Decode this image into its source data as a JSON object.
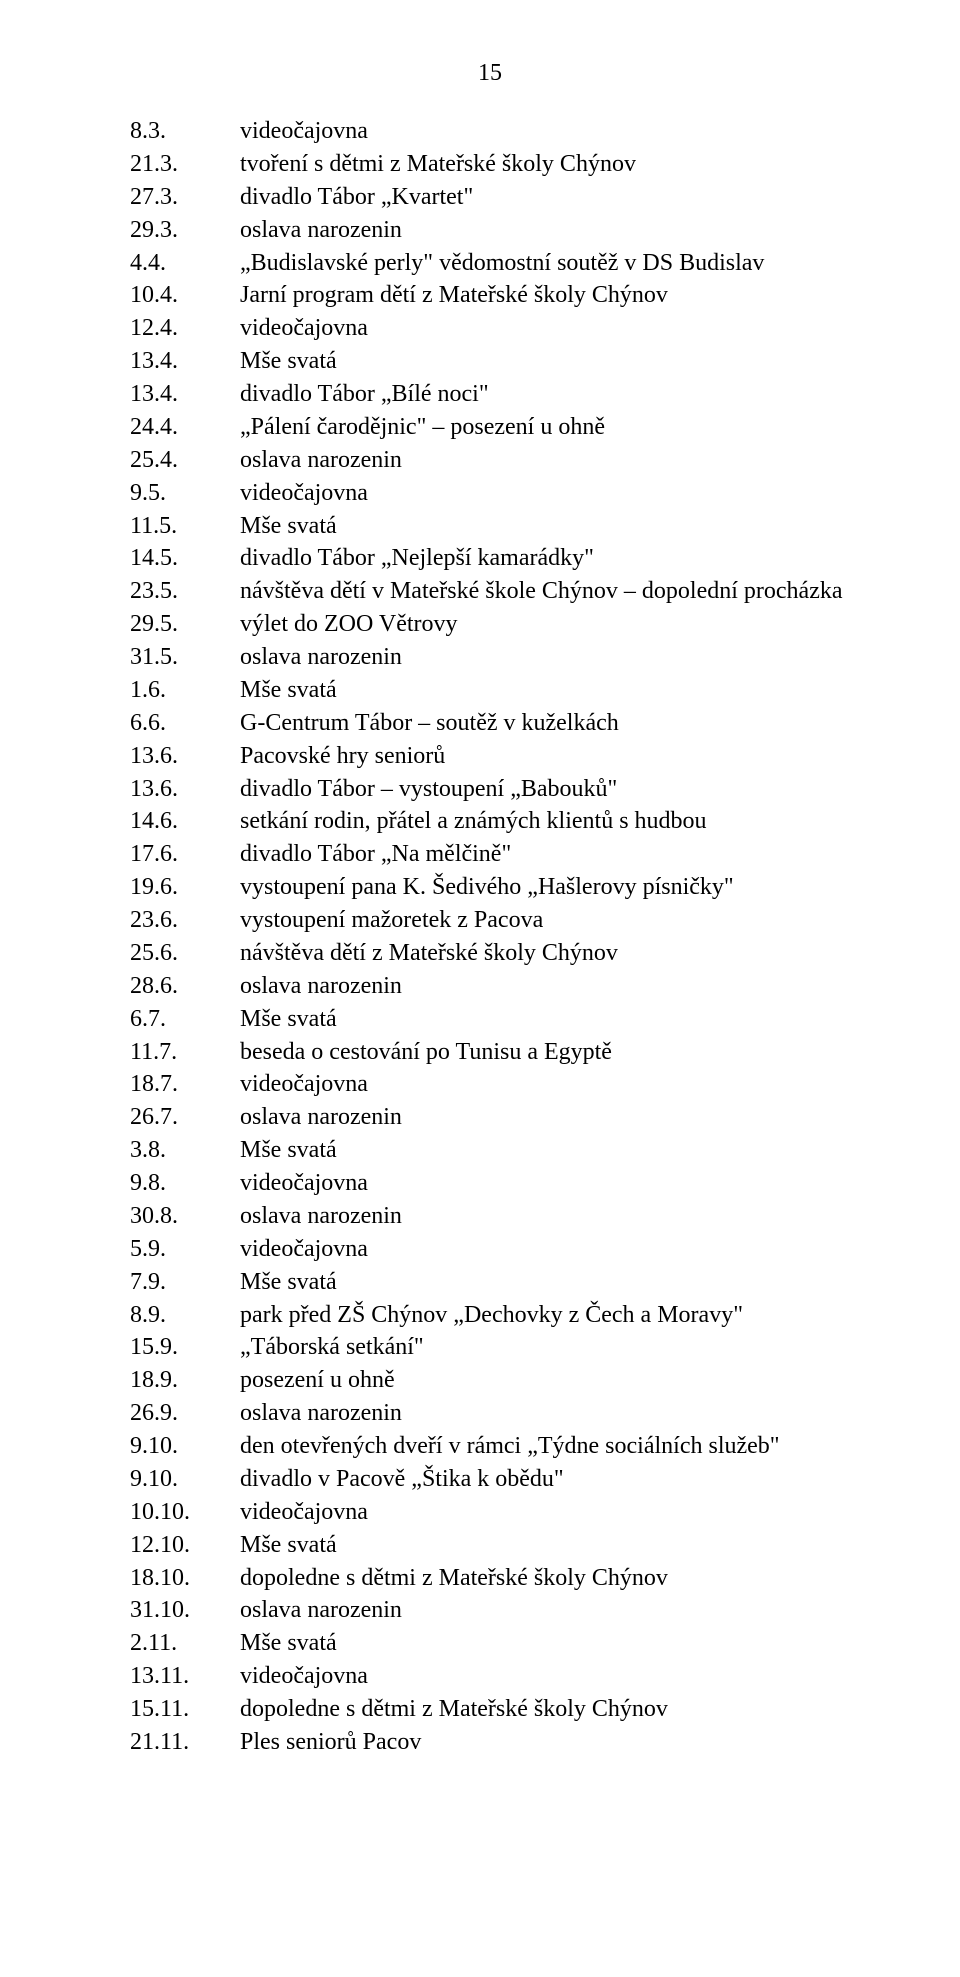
{
  "page_number": "15",
  "font_family": "Times New Roman",
  "font_size_pt": 24,
  "text_color": "#000000",
  "background_color": "#ffffff",
  "entries": [
    {
      "date": "8.3.",
      "text": "videočajovna"
    },
    {
      "date": "21.3.",
      "text": "tvoření s dětmi z Mateřské školy Chýnov"
    },
    {
      "date": "27.3.",
      "text": "divadlo Tábor „Kvartet\""
    },
    {
      "date": "29.3.",
      "text": "oslava narozenin"
    },
    {
      "date": "4.4.",
      "text": "„Budislavské perly\" vědomostní soutěž v DS Budislav"
    },
    {
      "date": "10.4.",
      "text": "Jarní program dětí z Mateřské školy Chýnov"
    },
    {
      "date": "12.4.",
      "text": "videočajovna"
    },
    {
      "date": "13.4.",
      "text": "Mše svatá"
    },
    {
      "date": "13.4.",
      "text": "divadlo Tábor „Bílé noci\""
    },
    {
      "date": "24.4.",
      "text": "„Pálení čarodějnic\" – posezení u ohně"
    },
    {
      "date": "25.4.",
      "text": "oslava narozenin"
    },
    {
      "date": "9.5.",
      "text": "videočajovna"
    },
    {
      "date": "11.5.",
      "text": "Mše svatá"
    },
    {
      "date": "14.5.",
      "text": "divadlo Tábor „Nejlepší kamarádky\""
    },
    {
      "date": "23.5.",
      "text": "návštěva dětí v Mateřské škole Chýnov – dopolední procházka"
    },
    {
      "date": "29.5.",
      "text": "výlet do ZOO Větrovy"
    },
    {
      "date": "31.5.",
      "text": "oslava narozenin"
    },
    {
      "date": "1.6.",
      "text": "Mše svatá"
    },
    {
      "date": "6.6.",
      "text": "G-Centrum Tábor – soutěž v kuželkách"
    },
    {
      "date": "13.6.",
      "text": "Pacovské hry seniorů"
    },
    {
      "date": "13.6.",
      "text": "divadlo Tábor – vystoupení „Babouků\""
    },
    {
      "date": "14.6.",
      "text": "setkání rodin, přátel a známých klientů s hudbou"
    },
    {
      "date": "17.6.",
      "text": "divadlo Tábor „Na mělčině\""
    },
    {
      "date": "19.6.",
      "text": "vystoupení pana K. Šedivého „Hašlerovy písničky\""
    },
    {
      "date": "23.6.",
      "text": "vystoupení mažoretek z Pacova"
    },
    {
      "date": "25.6.",
      "text": "návštěva dětí z Mateřské školy Chýnov"
    },
    {
      "date": "28.6.",
      "text": "oslava narozenin"
    },
    {
      "date": "6.7.",
      "text": "Mše svatá"
    },
    {
      "date": "11.7.",
      "text": "beseda o cestování po Tunisu a Egyptě"
    },
    {
      "date": "18.7.",
      "text": "videočajovna"
    },
    {
      "date": "26.7.",
      "text": "oslava narozenin"
    },
    {
      "date": "3.8.",
      "text": "Mše svatá"
    },
    {
      "date": "9.8.",
      "text": "videočajovna"
    },
    {
      "date": "30.8.",
      "text": "oslava narozenin"
    },
    {
      "date": "5.9.",
      "text": "videočajovna"
    },
    {
      "date": "7.9.",
      "text": "Mše svatá"
    },
    {
      "date": "8.9.",
      "text": "park před ZŠ Chýnov „Dechovky z Čech a Moravy\""
    },
    {
      "date": "15.9.",
      "text": "„Táborská setkání\""
    },
    {
      "date": "18.9.",
      "text": "posezení u ohně"
    },
    {
      "date": "26.9.",
      "text": "oslava narozenin"
    },
    {
      "date": "9.10.",
      "text": "den otevřených dveří v rámci „Týdne sociálních služeb\""
    },
    {
      "date": "9.10.",
      "text": "divadlo v Pacově „Štika k obědu\""
    },
    {
      "date": "10.10.",
      "text": "videočajovna"
    },
    {
      "date": "12.10.",
      "text": "Mše svatá"
    },
    {
      "date": "18.10.",
      "text": "dopoledne s dětmi z Mateřské školy Chýnov"
    },
    {
      "date": "31.10.",
      "text": "oslava narozenin"
    },
    {
      "date": "2.11.",
      "text": "Mše svatá"
    },
    {
      "date": "13.11.",
      "text": "videočajovna"
    },
    {
      "date": "15.11.",
      "text": "dopoledne s dětmi z Mateřské školy Chýnov"
    },
    {
      "date": "21.11.",
      "text": "Ples seniorů Pacov"
    }
  ]
}
